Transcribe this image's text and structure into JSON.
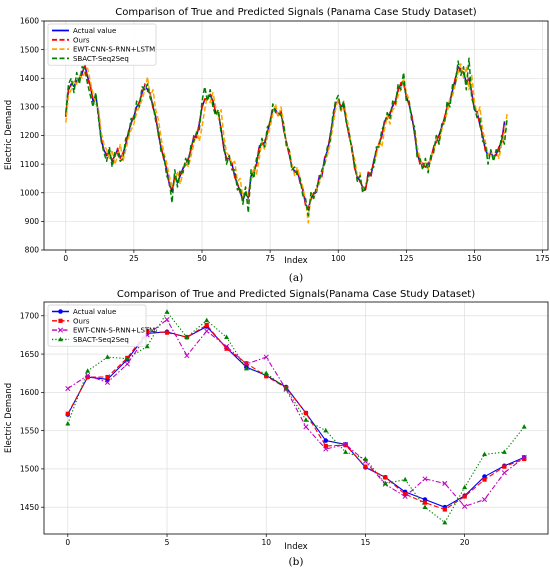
{
  "colors": {
    "actual": "#0000ff",
    "ours": "#ff0000",
    "ewt": "#ffa500",
    "sbact": "#008000",
    "ewt_b": "#c000c0",
    "grid": "#d9d9d9"
  },
  "chart_data": [
    {
      "type": "line",
      "panel_label": "(a)",
      "title": "Comparison of True and Predicted Signals (Panama Case Study Dataset)",
      "xlabel": "Index",
      "ylabel": "Electric Demand",
      "xlim": [
        -8,
        177
      ],
      "ylim": [
        800,
        1600
      ],
      "xticks": [
        0,
        25,
        50,
        75,
        100,
        125,
        150,
        175
      ],
      "yticks": [
        800,
        900,
        1000,
        1100,
        1200,
        1300,
        1400,
        1500,
        1600
      ],
      "grid": true,
      "legend_position": "top-left",
      "series": [
        {
          "name": "Actual value",
          "key": "actual",
          "style": "solid",
          "values": [
            1270,
            1360,
            1380,
            1372,
            1390,
            1398,
            1418,
            1445,
            1405,
            1375,
            1320,
            1340,
            1275,
            1185,
            1150,
            1130,
            1140,
            1110,
            1130,
            1150,
            1124,
            1135,
            1170,
            1210,
            1245,
            1265,
            1300,
            1315,
            1350,
            1375,
            1360,
            1345,
            1300,
            1265,
            1205,
            1155,
            1120,
            1082,
            1030,
            1005,
            1058,
            1035,
            1060,
            1084,
            1100,
            1118,
            1155,
            1195,
            1195,
            1240,
            1300,
            1325,
            1331,
            1340,
            1322,
            1280,
            1280,
            1222,
            1155,
            1118,
            1120,
            1100,
            1058,
            1030,
            1005,
            972,
            1002,
            982,
            1058,
            1075,
            1100,
            1160,
            1172,
            1175,
            1210,
            1250,
            1290,
            1290,
            1270,
            1285,
            1220,
            1175,
            1135,
            1090,
            1075,
            1075,
            1038,
            1010,
            960,
            942,
            980,
            996,
            1002,
            1055,
            1060,
            1120,
            1145,
            1195,
            1255,
            1310,
            1322,
            1300,
            1305,
            1248,
            1200,
            1158,
            1090,
            1054,
            1042,
            1018,
            1010,
            1068,
            1060,
            1108,
            1148,
            1170,
            1200,
            1250,
            1262,
            1275,
            1305,
            1320,
            1360,
            1380,
            1385,
            1335,
            1310,
            1268,
            1210,
            1138,
            1105,
            1100,
            1090,
            1100,
            1118,
            1158,
            1180,
            1200,
            1230,
            1260,
            1300,
            1318,
            1360,
            1398,
            1440,
            1430,
            1420,
            1385,
            1400,
            1350,
            1290,
            1280,
            1238,
            1200,
            1150,
            1130,
            1140,
            1125,
            1135,
            1158,
            1180,
            1246
          ]
        },
        {
          "name": "Ours",
          "key": "ours",
          "style": "dashed",
          "values": [
            1265,
            1365,
            1375,
            1377,
            1385,
            1402,
            1412,
            1450,
            1400,
            1370,
            1325,
            1335,
            1270,
            1190,
            1148,
            1135,
            1136,
            1115,
            1126,
            1155,
            1120,
            1140,
            1165,
            1214,
            1240,
            1270,
            1296,
            1318,
            1346,
            1380,
            1355,
            1348,
            1296,
            1268,
            1200,
            1160,
            1115,
            1087,
            1026,
            1010,
            1052,
            1040,
            1056,
            1088,
            1096,
            1122,
            1150,
            1200,
            1192,
            1244,
            1296,
            1328,
            1328,
            1344,
            1318,
            1284,
            1276,
            1226,
            1150,
            1122,
            1116,
            1104,
            1054,
            1034,
            1000,
            976,
            998,
            986,
            1054,
            1080,
            1096,
            1164,
            1168,
            1180,
            1206,
            1254,
            1286,
            1294,
            1266,
            1288,
            1216,
            1180,
            1130,
            1094,
            1070,
            1080,
            1034,
            1014,
            956,
            946,
            976,
            1000,
            998,
            1060,
            1056,
            1124,
            1140,
            1200,
            1250,
            1314,
            1318,
            1304,
            1300,
            1252,
            1196,
            1162,
            1086,
            1058,
            1038,
            1022,
            1006,
            1072,
            1056,
            1112,
            1144,
            1174,
            1196,
            1254,
            1258,
            1280,
            1300,
            1324,
            1356,
            1384,
            1380,
            1340,
            1306,
            1272,
            1206,
            1142,
            1100,
            1104,
            1086,
            1104,
            1114,
            1162,
            1176,
            1204,
            1226,
            1264,
            1296,
            1322,
            1356,
            1402,
            1436,
            1434,
            1416,
            1390,
            1396,
            1354,
            1286,
            1284,
            1234,
            1204,
            1146,
            1134,
            1136,
            1130,
            1130,
            1162,
            1176,
            1250
          ]
        },
        {
          "name": "EWT-CNN-S-RNN+LSTM",
          "key": "ewt",
          "style": "dashed",
          "values": [
            1245,
            1340,
            1360,
            1395,
            1375,
            1410,
            1400,
            1420,
            1435,
            1390,
            1345,
            1310,
            1295,
            1210,
            1170,
            1150,
            1120,
            1150,
            1098,
            1130,
            1170,
            1110,
            1150,
            1190,
            1220,
            1240,
            1280,
            1300,
            1325,
            1360,
            1405,
            1335,
            1360,
            1290,
            1255,
            1190,
            1140,
            1105,
            1060,
            1020,
            1040,
            1075,
            1030,
            1070,
            1110,
            1090,
            1130,
            1170,
            1215,
            1180,
            1230,
            1290,
            1340,
            1315,
            1350,
            1300,
            1260,
            1290,
            1200,
            1140,
            1130,
            1100,
            1110,
            1040,
            1050,
            985,
            1020,
            970,
            1040,
            1090,
            1065,
            1120,
            1180,
            1150,
            1195,
            1230,
            1275,
            1310,
            1265,
            1300,
            1240,
            1165,
            1150,
            1100,
            1060,
            1090,
            1050,
            1020,
            975,
            895,
            1000,
            980,
            1010,
            1030,
            1075,
            1100,
            1130,
            1170,
            1230,
            1290,
            1330,
            1280,
            1320,
            1270,
            1220,
            1140,
            1120,
            1060,
            1070,
            1000,
            1030,
            1050,
            1080,
            1090,
            1130,
            1180,
            1160,
            1220,
            1270,
            1240,
            1290,
            1300,
            1340,
            1360,
            1400,
            1350,
            1325,
            1250,
            1230,
            1160,
            1120,
            1090,
            1110,
            1080,
            1130,
            1140,
            1190,
            1170,
            1220,
            1250,
            1280,
            1330,
            1340,
            1380,
            1420,
            1450,
            1400,
            1440,
            1360,
            1410,
            1320,
            1270,
            1300,
            1220,
            1180,
            1130,
            1150,
            1120,
            1150,
            1120,
            1170,
            1200,
            1280
          ]
        },
        {
          "name": "SBACT-Seq2Seq",
          "key": "sbact",
          "style": "dashed",
          "values": [
            1280,
            1380,
            1400,
            1350,
            1420,
            1380,
            1440,
            1430,
            1380,
            1340,
            1300,
            1350,
            1260,
            1180,
            1140,
            1110,
            1160,
            1090,
            1140,
            1140,
            1110,
            1120,
            1190,
            1200,
            1260,
            1250,
            1320,
            1300,
            1370,
            1360,
            1380,
            1330,
            1310,
            1250,
            1220,
            1140,
            1130,
            1060,
            1040,
            965,
            1080,
            1020,
            1080,
            1070,
            1120,
            1100,
            1170,
            1180,
            1210,
            1220,
            1320,
            1370,
            1320,
            1360,
            1300,
            1270,
            1290,
            1210,
            1170,
            1100,
            1130,
            1080,
            1080,
            1010,
            1020,
            960,
            1020,
            930,
            1080,
            1050,
            1120,
            1140,
            1190,
            1160,
            1230,
            1240,
            1310,
            1280,
            1280,
            1270,
            1240,
            1160,
            1150,
            1080,
            1090,
            1060,
            1050,
            990,
            980,
            920,
            1000,
            980,
            1020,
            1040,
            1080,
            1100,
            1160,
            1180,
            1270,
            1320,
            1340,
            1290,
            1320,
            1240,
            1210,
            1150,
            1100,
            1040,
            1060,
            1000,
            1020,
            1050,
            1080,
            1090,
            1160,
            1160,
            1220,
            1240,
            1280,
            1260,
            1320,
            1310,
            1380,
            1360,
            1420,
            1320,
            1320,
            1250,
            1230,
            1120,
            1120,
            1080,
            1120,
            1070,
            1130,
            1140,
            1200,
            1170,
            1240,
            1240,
            1320,
            1300,
            1380,
            1380,
            1460,
            1410,
            1440,
            1360,
            1470,
            1330,
            1300,
            1260,
            1260,
            1180,
            1170,
            1100,
            1150,
            1110,
            1150,
            1140,
            1200,
            1170,
            1260
          ]
        }
      ]
    },
    {
      "type": "line",
      "panel_label": "(b)",
      "title": "Comparison of True and Predicted Signals(Panama Case Study Dataset)",
      "xlabel": "Index",
      "ylabel": "Electric Demand",
      "xlim": [
        -1.2,
        24.2
      ],
      "ylim": [
        1415,
        1718
      ],
      "xticks": [
        0,
        5,
        10,
        15,
        20
      ],
      "yticks": [
        1450,
        1500,
        1550,
        1600,
        1650,
        1700
      ],
      "grid": true,
      "legend_position": "top-left",
      "series": [
        {
          "name": "Actual value",
          "key": "actual",
          "style": "solid",
          "marker": "circle",
          "values": [
            1571,
            1620,
            1617,
            1643,
            1677,
            1679,
            1672,
            1686,
            1658,
            1633,
            1622,
            1607,
            1573,
            1537,
            1532,
            1502,
            1489,
            1470,
            1460,
            1450,
            1465,
            1490,
            1504,
            1515
          ]
        },
        {
          "name": "Ours",
          "key": "ours",
          "style": "dashed",
          "marker": "square",
          "values": [
            1572,
            1620,
            1620,
            1645,
            1680,
            1678,
            1672,
            1688,
            1657,
            1638,
            1621,
            1606,
            1573,
            1530,
            1531,
            1503,
            1489,
            1467,
            1456,
            1447,
            1464,
            1486,
            1503,
            1513
          ]
        },
        {
          "name": "EWT-CNN-S-RNN+LSTM",
          "key": "ewt_b",
          "style": "dashdot",
          "marker": "x",
          "values": [
            1605,
            1622,
            1613,
            1637,
            1675,
            1695,
            1648,
            1680,
            1660,
            1637,
            1646,
            1604,
            1555,
            1526,
            1532,
            1510,
            1480,
            1464,
            1487,
            1481,
            1451,
            1460,
            1495,
            1515
          ]
        },
        {
          "name": "SBACT-Seq2Seq",
          "key": "sbact",
          "style": "dotted",
          "marker": "triangle",
          "values": [
            1559,
            1628,
            1646,
            1644,
            1660,
            1705,
            1672,
            1694,
            1672,
            1631,
            1625,
            1605,
            1564,
            1550,
            1522,
            1513,
            1481,
            1486,
            1450,
            1430,
            1476,
            1519,
            1522,
            1555
          ]
        }
      ]
    }
  ]
}
